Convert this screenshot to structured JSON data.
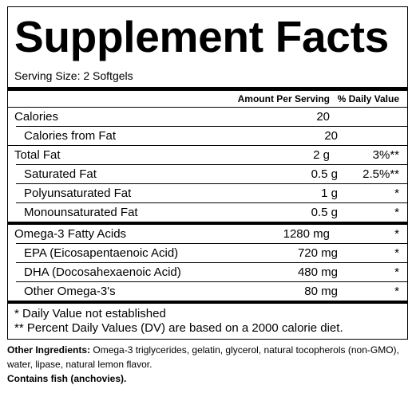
{
  "title": "Supplement Facts",
  "serving_size": "Serving Size:  2 Softgels",
  "header": {
    "amount": "Amount Per Serving",
    "daily_value": "% Daily Value"
  },
  "rows": [
    {
      "name": "Calories",
      "amount": "20",
      "daily_value": ""
    },
    {
      "name": "Calories from Fat",
      "amount": "20",
      "daily_value": ""
    },
    {
      "name": "Total Fat",
      "amount": "2 g",
      "daily_value": "3%**"
    },
    {
      "name": "Saturated Fat",
      "amount": "0.5 g",
      "daily_value": "2.5%**"
    },
    {
      "name": "Polyunsaturated Fat",
      "amount": "1 g",
      "daily_value": "*"
    },
    {
      "name": "Monounsaturated Fat",
      "amount": "0.5 g",
      "daily_value": "*"
    },
    {
      "name": "Omega-3 Fatty Acids",
      "amount": "1280 mg",
      "daily_value": "*"
    },
    {
      "name": "EPA (Eicosapentaenoic Acid)",
      "amount": "720 mg",
      "daily_value": "*"
    },
    {
      "name": "DHA (Docosahexaenoic Acid)",
      "amount": "480 mg",
      "daily_value": "*"
    },
    {
      "name": "Other Omega-3's",
      "amount": "80 mg",
      "daily_value": "*"
    }
  ],
  "footnotes": [
    "* Daily Value not established",
    "** Percent Daily Values (DV) are based on a 2000 calorie diet."
  ],
  "other_ingredients": {
    "label": "Other Ingredients:",
    "text": "Omega-3 triglycerides, gelatin, glycerol, natural tocopherols (non-GMO), water, lipase, natural lemon flavor."
  },
  "allergen": "Contains fish (anchovies)."
}
